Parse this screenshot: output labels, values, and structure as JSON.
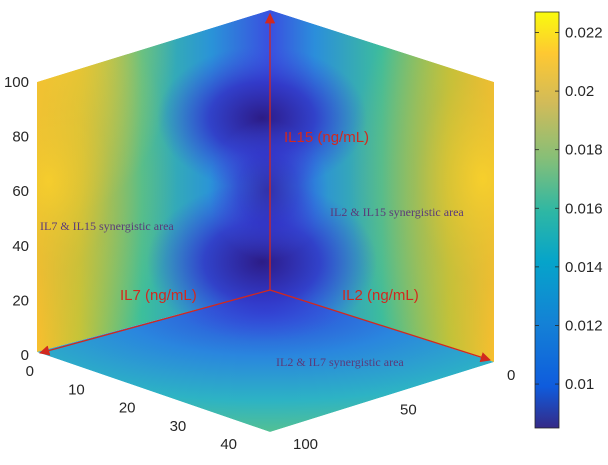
{
  "chart_data": {
    "type": "heatmap",
    "subtype": "3d-cube-surface",
    "z_axis": {
      "ticks": [
        "0",
        "20",
        "40",
        "60",
        "80",
        "100"
      ],
      "range": [
        0,
        100
      ]
    },
    "x_axis": {
      "ticks": [
        "0",
        "10",
        "20",
        "30",
        "40"
      ],
      "range": [
        0,
        40
      ]
    },
    "y_axis": {
      "ticks": [
        "0",
        "50",
        "100"
      ],
      "range": [
        0,
        100
      ]
    },
    "colorbar": {
      "colormap": "parula",
      "range": [
        0.0085,
        0.0227
      ],
      "ticks": [
        "0.01",
        "0.012",
        "0.014",
        "0.016",
        "0.018",
        "0.02",
        "0.022"
      ],
      "tick_values": [
        0.01,
        0.012,
        0.014,
        0.016,
        0.018,
        0.02,
        0.022
      ]
    },
    "annotations": {
      "il15_axis": "IL15 (ng/mL)",
      "il7_axis": "IL7 (ng/mL)",
      "il2_axis": "IL2 (ng/mL)",
      "il7_il15_area": "IL7 & IL15 synergistic area",
      "il2_il15_area": "IL2 & IL15 synergistic area",
      "il2_il7_area": "IL2 & IL7 synergistic area"
    },
    "arrow_color": "#d2281e",
    "grid": false
  }
}
